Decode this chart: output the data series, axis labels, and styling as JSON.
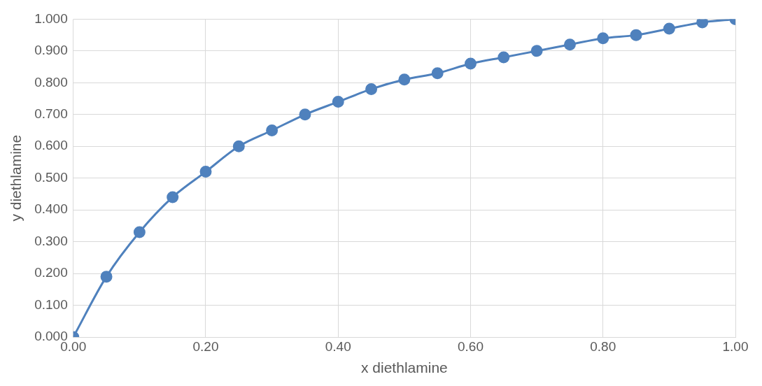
{
  "chart_data": {
    "type": "line",
    "xlabel": "x diethlamine",
    "ylabel": "y diethlamine",
    "x": [
      0,
      0.05,
      0.1,
      0.15,
      0.2,
      0.25,
      0.3,
      0.35,
      0.4,
      0.45,
      0.5,
      0.55,
      0.6,
      0.65,
      0.7,
      0.75,
      0.8,
      0.85,
      0.9,
      0.95,
      1
    ],
    "series": [
      {
        "color": "#4f81bd",
        "values": [
          0,
          0.19,
          0.33,
          0.44,
          0.52,
          0.6,
          0.65,
          0.7,
          0.74,
          0.78,
          0.81,
          0.83,
          0.86,
          0.88,
          0.9,
          0.92,
          0.94,
          0.95,
          0.97,
          0.99,
          1
        ]
      }
    ],
    "xlim": [
      0,
      1
    ],
    "ylim": [
      0,
      1
    ],
    "xticks": [
      {
        "value": 0,
        "label": "0.00"
      },
      {
        "value": 0.2,
        "label": "0.20"
      },
      {
        "value": 0.4,
        "label": "0.40"
      },
      {
        "value": 0.6,
        "label": "0.60"
      },
      {
        "value": 0.8,
        "label": "0.80"
      },
      {
        "value": 1,
        "label": "1.00"
      }
    ],
    "yticks": [
      {
        "value": 0,
        "label": "0.000"
      },
      {
        "value": 0.1,
        "label": "0.100"
      },
      {
        "value": 0.2,
        "label": "0.200"
      },
      {
        "value": 0.3,
        "label": "0.300"
      },
      {
        "value": 0.4,
        "label": "0.400"
      },
      {
        "value": 0.5,
        "label": "0.500"
      },
      {
        "value": 0.6,
        "label": "0.600"
      },
      {
        "value": 0.7,
        "label": "0.700"
      },
      {
        "value": 0.8,
        "label": "0.800"
      },
      {
        "value": 0.9,
        "label": "0.900"
      },
      {
        "value": 1,
        "label": "1.000"
      }
    ],
    "grid": true,
    "legend": false,
    "marker": "circle",
    "line_style": "solid"
  }
}
